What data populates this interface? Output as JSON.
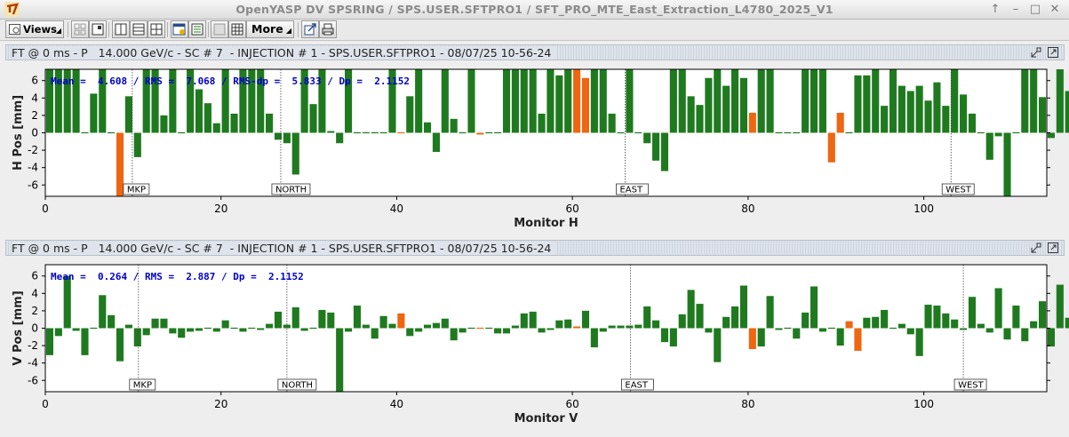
{
  "window": {
    "title": "OpenYASP DV SPSRING / SPS.USER.SFTPRO1 / SFT_PRO_MTE_East_Extraction_L4780_2025_V1",
    "buttons": [
      "↑",
      "–",
      "□",
      "✕"
    ]
  },
  "toolbar": {
    "views_label": "Views",
    "more_label": "More"
  },
  "colors": {
    "good": "#1f7a1f",
    "flagged": "#ee6611",
    "stats": "#0000cc",
    "marker_line": "#444444"
  },
  "panels": {
    "h": {
      "title": "FT @ 0 ms - P   14.000 GeV/c - SC # 7  - INJECTION # 1 - SPS.USER.SFTPRO1 - 08/07/25 10-56-24",
      "stats": "Mean =  4.608 / RMS =  7.068 / RMS-dp =  5.833 / Dp =  2.1152"
    },
    "v": {
      "title": "FT @ 0 ms - P   14.000 GeV/c - SC # 7  - INJECTION # 1 - SPS.USER.SFTPRO1 - 08/07/25 10-56-24",
      "stats": "Mean =  0.264 / RMS =  2.887 / Dp =  2.1152"
    }
  },
  "chart_data": [
    {
      "type": "bar",
      "xlabel": "Monitor H",
      "ylabel": "H Pos [mm]",
      "xlim": [
        0,
        114
      ],
      "ylim": [
        -7.3,
        7.3
      ],
      "xticks": [
        0,
        20,
        40,
        60,
        80,
        100
      ],
      "yticks": [
        -6,
        -4,
        -2,
        0,
        2,
        4,
        6
      ],
      "markers": [
        {
          "label": "MKP",
          "x": 9.9
        },
        {
          "label": "NORTH",
          "x": 26.8
        },
        {
          "label": "EAST",
          "x": 66.0
        },
        {
          "label": "WEST",
          "x": 103.1
        }
      ],
      "values": [
        7.3,
        7.3,
        7.3,
        7.3,
        0.1,
        4.5,
        7.3,
        0.0,
        -7.3,
        4.2,
        -2.8,
        7.3,
        7.3,
        2.0,
        7.3,
        0.1,
        7.3,
        5.0,
        3.4,
        1.1,
        7.3,
        2.2,
        7.3,
        7.3,
        7.3,
        2.2,
        -0.8,
        -1.2,
        -4.8,
        7.3,
        3.3,
        7.3,
        0.2,
        -1.2,
        7.3,
        0.0,
        0.1,
        0.1,
        0.0,
        7.3,
        0.0,
        4.2,
        7.3,
        1.2,
        -2.2,
        7.3,
        1.6,
        0.0,
        7.3,
        -0.2,
        -0.1,
        -0.1,
        7.3,
        7.3,
        7.3,
        7.3,
        2.2,
        7.3,
        6.6,
        7.3,
        7.3,
        6.3,
        7.3,
        7.3,
        2.2,
        0.0,
        7.3,
        0.1,
        -1.2,
        -3.2,
        -4.4,
        7.3,
        7.3,
        4.2,
        3.2,
        6.3,
        7.3,
        5.4,
        7.3,
        6.3,
        2.3,
        7.3,
        7.3,
        0.0,
        0.0,
        0.0,
        7.3,
        7.3,
        7.3,
        -3.4,
        2.3,
        0.0,
        6.6,
        6.6,
        7.3,
        3.1,
        7.3,
        5.4,
        4.8,
        5.4,
        3.7,
        5.8,
        3.1,
        7.3,
        4.4,
        2.2,
        0.0,
        -3.1,
        -0.4,
        -7.3,
        0.0,
        7.3,
        7.3,
        4.1,
        -0.6,
        7.3,
        4.8,
        -7.3
      ],
      "flagged": [
        8,
        40,
        49,
        60,
        61,
        80,
        89,
        90
      ]
    },
    {
      "type": "bar",
      "xlabel": "Monitor V",
      "ylabel": "V Pos [mm]",
      "xlim": [
        0,
        114
      ],
      "ylim": [
        -7.3,
        7.3
      ],
      "xticks": [
        0,
        20,
        40,
        60,
        80,
        100
      ],
      "yticks": [
        -6,
        -4,
        -2,
        0,
        2,
        4,
        6
      ],
      "markers": [
        {
          "label": "MKP",
          "x": 10.6
        },
        {
          "label": "NORTH",
          "x": 27.5
        },
        {
          "label": "EAST",
          "x": 66.6
        },
        {
          "label": "WEST",
          "x": 104.5
        }
      ],
      "values": [
        -3.1,
        -0.9,
        6.0,
        -0.3,
        -3.1,
        -0.1,
        3.8,
        1.5,
        -3.8,
        0.4,
        -2.1,
        -0.8,
        1.1,
        1.1,
        -0.6,
        -1.1,
        -0.4,
        -0.3,
        -0.1,
        -0.4,
        0.9,
        -0.1,
        -0.4,
        -0.1,
        -0.2,
        0.5,
        1.9,
        0.4,
        2.4,
        -0.3,
        -0.1,
        2.1,
        1.8,
        -7.3,
        -0.4,
        2.6,
        0.4,
        -1.2,
        1.4,
        0.5,
        1.7,
        -0.9,
        -0.4,
        0.4,
        0.6,
        1.1,
        -1.4,
        -0.5,
        0.1,
        -0.1,
        0.1,
        -0.6,
        -0.6,
        0.3,
        1.7,
        1.9,
        -0.5,
        -0.2,
        0.9,
        1.0,
        0.2,
        2.0,
        -2.2,
        -0.4,
        0.3,
        0.3,
        0.3,
        0.4,
        2.5,
        0.9,
        -1.6,
        -2.1,
        1.6,
        4.4,
        2.8,
        -0.5,
        -3.9,
        1.3,
        2.5,
        4.9,
        -2.4,
        -2.1,
        3.7,
        -0.2,
        0.0,
        -1.2,
        1.8,
        4.8,
        -0.4,
        -0.1,
        -2.0,
        0.8,
        -2.6,
        1.2,
        1.3,
        2.1,
        -0.1,
        0.5,
        -0.7,
        -3.2,
        2.7,
        2.6,
        1.7,
        1.0,
        -0.2,
        3.6,
        0.5,
        -0.5,
        4.6,
        -1.3,
        2.6,
        -1.5,
        0.8,
        3.1,
        -2.1,
        5.0,
        1.2,
        3.7,
        -1.2,
        2.5,
        -0.6
      ],
      "flagged": [
        40,
        49,
        60,
        80,
        91,
        92
      ]
    }
  ]
}
